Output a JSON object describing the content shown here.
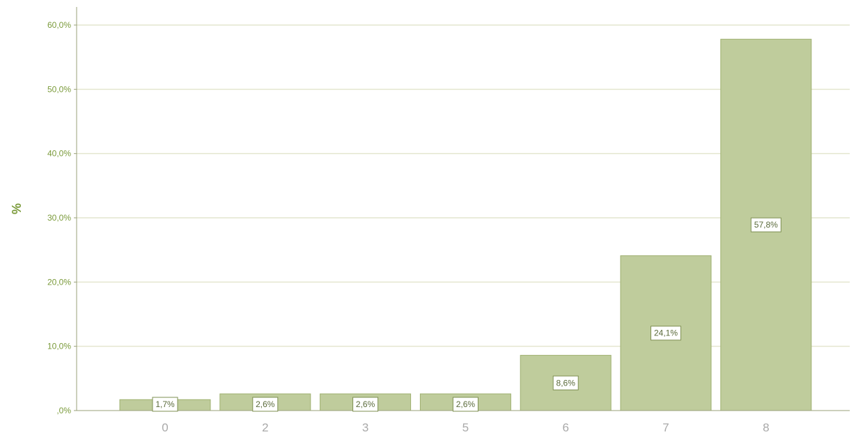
{
  "chart_data": {
    "type": "bar",
    "categories": [
      "0",
      "2",
      "3",
      "5",
      "6",
      "7",
      "8"
    ],
    "values": [
      1.7,
      2.6,
      2.6,
      2.6,
      8.6,
      24.1,
      57.8
    ],
    "data_labels": [
      "1,7%",
      "2,6%",
      "2,6%",
      "2,6%",
      "8,6%",
      "24,1%",
      "57,8%"
    ],
    "title": "",
    "xlabel": "",
    "ylabel": "%",
    "ylim": [
      0,
      60
    ],
    "yticks": [
      0,
      10,
      20,
      30,
      40,
      50,
      60
    ],
    "ytick_labels": [
      ",0%",
      "10,0%",
      "20,0%",
      "30,0%",
      "40,0%",
      "50,0%",
      "60,0%"
    ],
    "grid": true,
    "legend": "none",
    "colors": {
      "bar_fill": "#bfcc9c",
      "bar_stroke": "#9fb070",
      "grid": "#e4e6cf",
      "axis": "#9aa07a",
      "label_box_stroke": "#7e8f52",
      "ytick_text": "#7a9a3a",
      "xtick_text": "#a9a9a9"
    }
  }
}
